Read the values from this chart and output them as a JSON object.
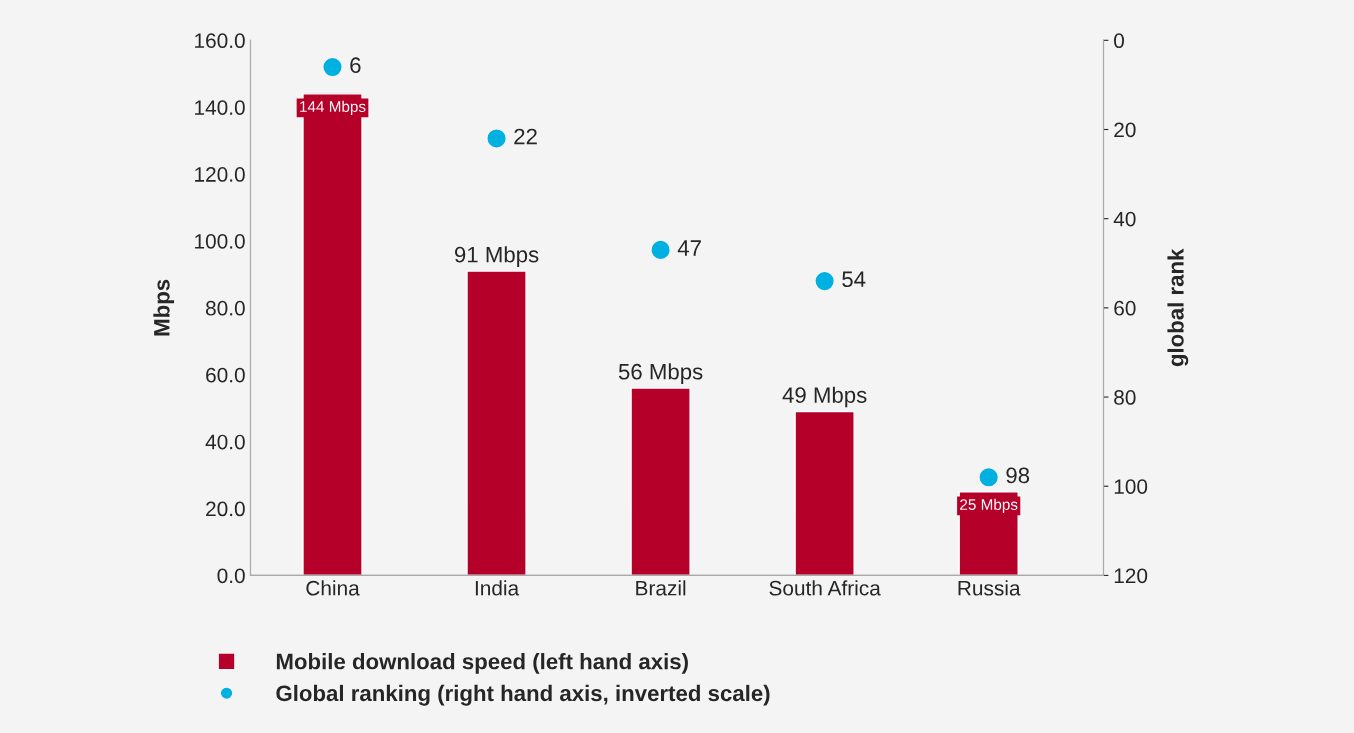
{
  "chart_data": {
    "type": "bar",
    "categories": [
      "China",
      "India",
      "Brazil",
      "South Africa",
      "Russia"
    ],
    "ylabel": "Mbps",
    "y2label": "global rank",
    "ylim": [
      0,
      160
    ],
    "yticks": [
      {
        "value": 0,
        "label": "0.0"
      },
      {
        "value": 20,
        "label": "20.0"
      },
      {
        "value": 40,
        "label": "40.0"
      },
      {
        "value": 60,
        "label": "60.0"
      },
      {
        "value": 80,
        "label": "80.0"
      },
      {
        "value": 100,
        "label": "100.0"
      },
      {
        "value": 120,
        "label": "120.0"
      },
      {
        "value": 140,
        "label": "140.0"
      },
      {
        "value": 160,
        "label": "160.0"
      }
    ],
    "y2lim": [
      120,
      0
    ],
    "y2ticks": [
      0,
      20,
      40,
      60,
      80,
      100,
      120
    ],
    "series": [
      {
        "name": "Mobile download speed (left hand axis)",
        "color": "#b5002a",
        "values": [
          144,
          91,
          56,
          49,
          25
        ],
        "value_labels": [
          "144 Mbps",
          "91 Mbps",
          "56 Mbps",
          "49 Mbps",
          "25 Mbps"
        ]
      },
      {
        "name": "Global ranking (right hand axis, inverted scale)",
        "type": "scatter",
        "axis": "y2",
        "color": "#00b0e0",
        "values": [
          6,
          22,
          47,
          54,
          98
        ],
        "value_labels": [
          "6",
          "22",
          "47",
          "54",
          "98"
        ]
      }
    ],
    "legend": "bottom",
    "grid": false,
    "marker": "circle"
  }
}
